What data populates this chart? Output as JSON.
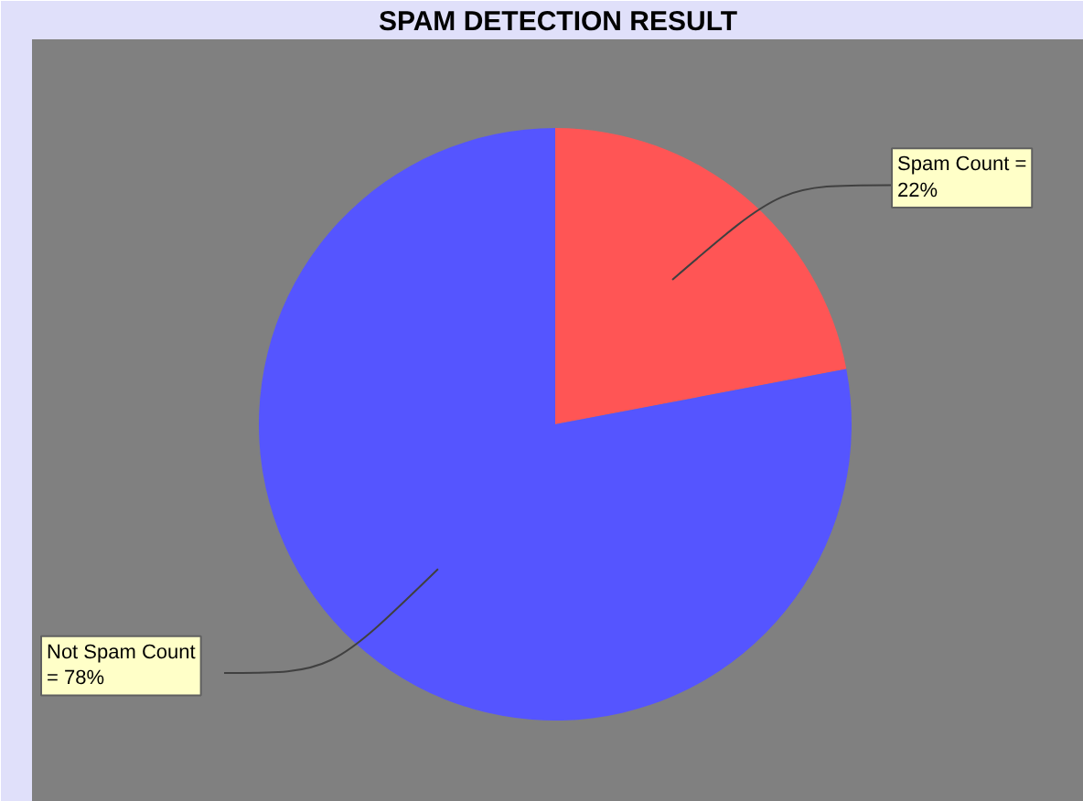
{
  "chart_data": {
    "type": "pie",
    "title": "SPAM DETECTION RESULT",
    "categories": [
      "Spam Count =",
      "Not Spam Count"
    ],
    "values": [
      22,
      78
    ],
    "colors": [
      "#ff5555",
      "#5555ff"
    ],
    "value_labels": [
      "22%",
      "= 78%"
    ]
  }
}
